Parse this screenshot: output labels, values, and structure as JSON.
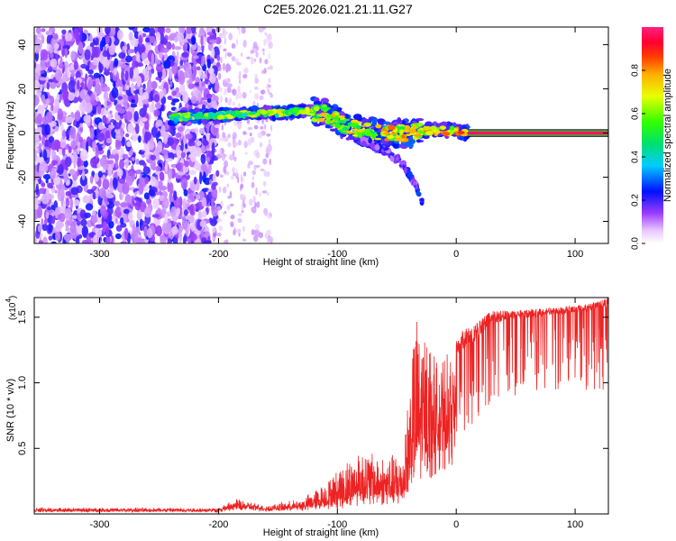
{
  "figure_title": "C2E5.2026.021.21.11.G27",
  "chart_data": [
    {
      "type": "heatmap",
      "title": "C2E5.2026.021.21.11.G27",
      "xlabel": "Height of straight line (km)",
      "ylabel": "Frequency (Hz)",
      "xlim": [
        -355,
        128
      ],
      "ylim": [
        -50,
        48
      ],
      "xticks": [
        -300,
        -200,
        -100,
        0,
        100
      ],
      "xtick_labels": [
        "-300",
        "-200",
        "-100",
        "0",
        "100"
      ],
      "yticks": [
        -40,
        -20,
        0,
        20,
        40
      ],
      "ytick_labels": [
        "-40",
        "-20",
        "0",
        "20",
        "40"
      ],
      "colorbar": {
        "label": "Normalized spectral amplitude",
        "range": [
          0,
          1
        ],
        "ticks": [
          0,
          0.2,
          0.4,
          0.6,
          0.8
        ],
        "tick_labels": [
          "0.0",
          "0.2",
          "0.4",
          "0.6",
          "0.8"
        ],
        "colormap": "rainbow (white-violet-blue-cyan-green-yellow-orange-red-magenta)"
      },
      "features": {
        "noise_region_x": [
          -355,
          -200
        ],
        "sparse_noise_x": [
          -200,
          -155
        ],
        "signal_track": [
          {
            "x": -240,
            "y": 7
          },
          {
            "x": -200,
            "y": 8
          },
          {
            "x": -170,
            "y": 9
          },
          {
            "x": -150,
            "y": 9
          },
          {
            "x": -130,
            "y": 10
          },
          {
            "x": -110,
            "y": 9
          },
          {
            "x": -95,
            "y": 4
          },
          {
            "x": -80,
            "y": 1
          },
          {
            "x": -60,
            "y": 0
          },
          {
            "x": -40,
            "y": 0
          },
          {
            "x": -20,
            "y": 1
          },
          {
            "x": 0,
            "y": 1
          },
          {
            "x": 10,
            "y": 0
          }
        ],
        "branch_track": [
          {
            "x": -80,
            "y": -3
          },
          {
            "x": -60,
            "y": -8
          },
          {
            "x": -45,
            "y": -14
          },
          {
            "x": -35,
            "y": -22
          },
          {
            "x": -28,
            "y": -32
          }
        ],
        "constant_line": {
          "x": [
            10,
            128
          ],
          "y": 0,
          "halfwidth": 1.5
        }
      }
    },
    {
      "type": "line",
      "xlabel": "Height of straight line (km)",
      "ylabel": "SNR (10 * v/v)",
      "y_scale_label": "(x10⁴)",
      "y_scale_base": "(x10",
      "y_scale_exp": "4",
      "y_scale_close": ")",
      "xlim": [
        -355,
        128
      ],
      "ylim": [
        0,
        1.65
      ],
      "xticks": [
        -300,
        -200,
        -100,
        0,
        100
      ],
      "xtick_labels": [
        "-300",
        "-200",
        "-100",
        "0",
        "100"
      ],
      "yticks": [
        0.5,
        1.0,
        1.5
      ],
      "ytick_labels": [
        "0.5",
        "1.0",
        "1.5"
      ],
      "color": "#ee2222",
      "series": [
        {
          "name": "SNR",
          "envelope": [
            {
              "x": -355,
              "base": 0.03,
              "peak": 0.05
            },
            {
              "x": -200,
              "base": 0.03,
              "peak": 0.05
            },
            {
              "x": -185,
              "base": 0.06,
              "peak": 0.12
            },
            {
              "x": -160,
              "base": 0.04,
              "peak": 0.07
            },
            {
              "x": -130,
              "base": 0.05,
              "peak": 0.12
            },
            {
              "x": -110,
              "base": 0.08,
              "peak": 0.25
            },
            {
              "x": -95,
              "base": 0.1,
              "peak": 0.4
            },
            {
              "x": -80,
              "base": 0.15,
              "peak": 0.52
            },
            {
              "x": -60,
              "base": 0.15,
              "peak": 0.45
            },
            {
              "x": -45,
              "base": 0.15,
              "peak": 0.5
            },
            {
              "x": -35,
              "base": 0.4,
              "peak": 1.55
            },
            {
              "x": -25,
              "base": 0.6,
              "peak": 1.52
            },
            {
              "x": -15,
              "base": 0.7,
              "peak": 1.2
            },
            {
              "x": -5,
              "base": 0.8,
              "peak": 1.25
            },
            {
              "x": 5,
              "base": 0.95,
              "peak": 1.4
            },
            {
              "x": 15,
              "base": 1.05,
              "peak": 1.45
            },
            {
              "x": 30,
              "base": 1.25,
              "peak": 1.55
            },
            {
              "x": 50,
              "base": 1.38,
              "peak": 1.55
            },
            {
              "x": 80,
              "base": 1.4,
              "peak": 1.57
            },
            {
              "x": 110,
              "base": 1.45,
              "peak": 1.6
            },
            {
              "x": 128,
              "base": 1.45,
              "peak": 1.65
            }
          ]
        }
      ]
    }
  ]
}
